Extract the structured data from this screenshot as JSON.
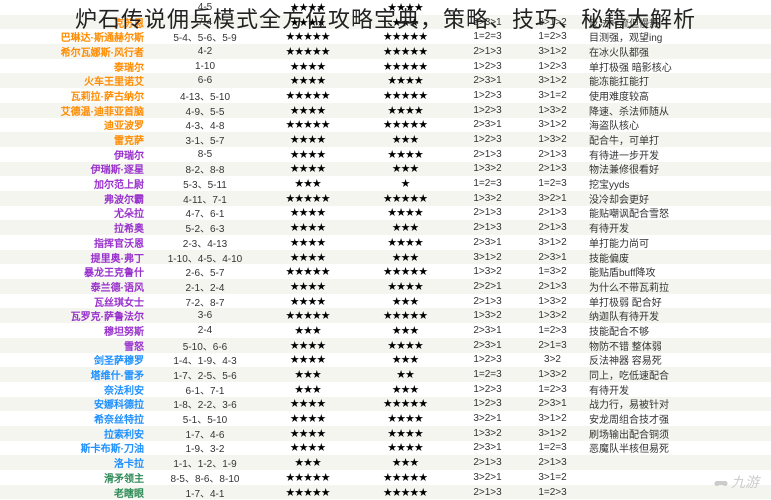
{
  "title": "炉石传说佣兵模式全方位攻略宝典，策略、技巧、秘籍大解析",
  "watermark": "九游",
  "name_colors": {
    "orange": "#ff8c00",
    "purple": "#9932cc",
    "blue": "#1e90ff",
    "green": "#2e8b57"
  },
  "rows": [
    {
      "name": "",
      "color": "orange",
      "range": "4-5",
      "s1": 4,
      "s2": 4,
      "p1": "",
      "p2": "",
      "note": ""
    },
    {
      "name": "克苏恩",
      "color": "orange",
      "range": "7-4",
      "s1": 4,
      "s2": 3,
      "p1": "2>3>1",
      "p2": "3>1>2",
      "note": "反法一流但慢热"
    },
    {
      "name": "巴琳达·斯通赫尔斯",
      "color": "orange",
      "range": "5-4、5-6、5-9",
      "s1": 5,
      "s2": 5,
      "p1": "1=2=3",
      "p2": "1=2>3",
      "note": "目测强，观望ing"
    },
    {
      "name": "希尔瓦娜斯·风行者",
      "color": "orange",
      "range": "4-2",
      "s1": 5,
      "s2": 5,
      "p1": "2>1>3",
      "p2": "3>1>2",
      "note": "在冰火队都强"
    },
    {
      "name": "泰瑞尔",
      "color": "orange",
      "range": "1-10",
      "s1": 4,
      "s2": 5,
      "p1": "1>2>3",
      "p2": "1>2>3",
      "note": "单打极强 暗影核心"
    },
    {
      "name": "火车王里诺艾",
      "color": "orange",
      "range": "6-6",
      "s1": 4,
      "s2": 4,
      "p1": "2>3>1",
      "p2": "3>1>2",
      "note": "能冻能扛能打"
    },
    {
      "name": "瓦莉拉·萨古纳尔",
      "color": "orange",
      "range": "4-13、5-10",
      "s1": 5,
      "s2": 5,
      "p1": "1>2>3",
      "p2": "3>1=2",
      "note": "使用难度较高"
    },
    {
      "name": "艾德温·迪菲亚首脑",
      "color": "orange",
      "range": "4-9、5-5",
      "s1": 4,
      "s2": 4,
      "p1": "1>2>3",
      "p2": "1>3>2",
      "note": "降速、杀法师随从"
    },
    {
      "name": "迪亚波罗",
      "color": "orange",
      "range": "4-3、4-8",
      "s1": 5,
      "s2": 5,
      "p1": "2>3>1",
      "p2": "3>1>2",
      "note": "海盗队核心"
    },
    {
      "name": "雷克萨",
      "color": "orange",
      "range": "3-1、5-7",
      "s1": 4,
      "s2": 3,
      "p1": "1>2>3",
      "p2": "1>3>2",
      "note": "配合牛，可单打"
    },
    {
      "name": "伊瑞尔",
      "color": "purple",
      "range": "8-5",
      "s1": 4,
      "s2": 4,
      "p1": "2>1>3",
      "p2": "2>1>3",
      "note": "有待进一步开发"
    },
    {
      "name": "伊瑞斯·逐星",
      "color": "purple",
      "range": "8-2、8-8",
      "s1": 4,
      "s2": 3,
      "p1": "1>3>2",
      "p2": "2>1>3",
      "note": "物法兼修很看好"
    },
    {
      "name": "加尔范上尉",
      "color": "purple",
      "range": "5-3、5-11",
      "s1": 3,
      "s2": 1,
      "p1": "1=2=3",
      "p2": "1=2=3",
      "note": "挖宝yyds"
    },
    {
      "name": "弗波尔霸",
      "color": "purple",
      "range": "4-11、7-1",
      "s1": 5,
      "s2": 5,
      "p1": "1>3>2",
      "p2": "3>2>1",
      "note": "没冷却会更好"
    },
    {
      "name": "尤朵拉",
      "color": "purple",
      "range": "4-7、6-1",
      "s1": 4,
      "s2": 4,
      "p1": "2>1>3",
      "p2": "2>1>3",
      "note": "能贴嘲讽配合雪怒"
    },
    {
      "name": "拉希奥",
      "color": "purple",
      "range": "5-2、6-3",
      "s1": 4,
      "s2": 3,
      "p1": "2>1>3",
      "p2": "2>1>3",
      "note": "有待开发"
    },
    {
      "name": "指挥官沃恩",
      "color": "purple",
      "range": "2-3、4-13",
      "s1": 4,
      "s2": 4,
      "p1": "2>3>1",
      "p2": "3>1>2",
      "note": "单打能力尚可"
    },
    {
      "name": "提里奥·弗丁",
      "color": "purple",
      "range": "1-10、4-5、4-10",
      "s1": 4,
      "s2": 3,
      "p1": "3>1>2",
      "p2": "2>3>1",
      "note": "技能偏废"
    },
    {
      "name": "暴龙王克鲁什",
      "color": "purple",
      "range": "2-6、5-7",
      "s1": 5,
      "s2": 5,
      "p1": "1>3>2",
      "p2": "1=3>2",
      "note": "能贴盾buff降攻"
    },
    {
      "name": "泰兰德·语风",
      "color": "purple",
      "range": "2-1、2-4",
      "s1": 4,
      "s2": 4,
      "p1": "2>2>1",
      "p2": "2>1>3",
      "note": "为什么不带瓦莉拉"
    },
    {
      "name": "瓦丝琪女士",
      "color": "purple",
      "range": "7-2、8-7",
      "s1": 4,
      "s2": 3,
      "p1": "2>1>3",
      "p2": "1>3>2",
      "note": "单打极弱 配合好"
    },
    {
      "name": "瓦罗克·萨鲁法尔",
      "color": "purple",
      "range": "3-6",
      "s1": 5,
      "s2": 5,
      "p1": "1>3>2",
      "p2": "1>3>2",
      "note": "纳迦队有待开发"
    },
    {
      "name": "穆坦努斯",
      "color": "purple",
      "range": "2-4",
      "s1": 3,
      "s2": 3,
      "p1": "2>3>1",
      "p2": "1=2>3",
      "note": "技能配合不够"
    },
    {
      "name": "雪怒",
      "color": "purple",
      "range": "5-10、6-6",
      "s1": 4,
      "s2": 4,
      "p1": "2>3>1",
      "p2": "2>1=3",
      "note": "物防不错 整体弱"
    },
    {
      "name": "剑圣萨穆罗",
      "color": "blue",
      "range": "1-4、1-9、4-3",
      "s1": 4,
      "s2": 3,
      "p1": "1>2>3",
      "p2": "3>2",
      "note": "反法神器 容易死"
    },
    {
      "name": "塔维什·雷矛",
      "color": "blue",
      "range": "1-7、2-5、5-6",
      "s1": 3,
      "s2": 2,
      "p1": "1=2=3",
      "p2": "1>3>2",
      "note": "同上，吃低速配合"
    },
    {
      "name": "奈法利安",
      "color": "blue",
      "range": "6-1、7-1",
      "s1": 3,
      "s2": 3,
      "p1": "1>2>3",
      "p2": "1=2>3",
      "note": "有待开发"
    },
    {
      "name": "安娜科德拉",
      "color": "blue",
      "range": "1-8、2-2、3-6",
      "s1": 4,
      "s2": 5,
      "p1": "1>2>3",
      "p2": "2>3>1",
      "note": "战力行，易被针对"
    },
    {
      "name": "希奈丝特拉",
      "color": "blue",
      "range": "5-1、5-10",
      "s1": 4,
      "s2": 4,
      "p1": "3>2>1",
      "p2": "3>1>2",
      "note": "安龙周组合技才强"
    },
    {
      "name": "拉索利安",
      "color": "blue",
      "range": "1-7、4-6",
      "s1": 4,
      "s2": 4,
      "p1": "1>3>2",
      "p2": "3>1>2",
      "note": "刷场输出配合铜须"
    },
    {
      "name": "斯卡布斯·刀油",
      "color": "blue",
      "range": "1-9、3-2",
      "s1": 4,
      "s2": 4,
      "p1": "2>3>1",
      "p2": "1=2=3",
      "note": "恶魔队半核但易死"
    },
    {
      "name": "洛卡拉",
      "color": "blue",
      "range": "1-1、1-2、1-9",
      "s1": 3,
      "s2": 3,
      "p1": "2>1>3",
      "p2": "2>1>3",
      "note": ""
    },
    {
      "name": "滑矛领主",
      "color": "green",
      "range": "8-5、8-6、8-10",
      "s1": 5,
      "s2": 5,
      "p1": "3>2>1",
      "p2": "3>1=2",
      "note": ""
    },
    {
      "name": "老瞎眼",
      "color": "green",
      "range": "1-7、4-1",
      "s1": 5,
      "s2": 5,
      "p1": "2>1>3",
      "p2": "1=2>3",
      "note": ""
    }
  ]
}
